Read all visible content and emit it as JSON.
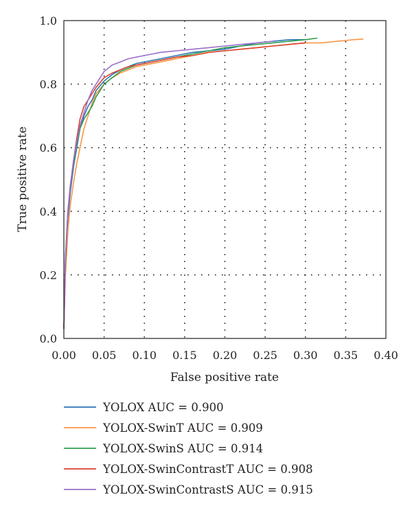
{
  "chart_data": {
    "type": "line",
    "title": "",
    "xlabel": "False positive rate",
    "ylabel": "True positive rate",
    "xlim": [
      0,
      0.4
    ],
    "ylim": [
      0,
      1.0
    ],
    "x_ticks": [
      "0.00",
      "0.05",
      "0.10",
      "0.15",
      "0.20",
      "0.25",
      "0.30",
      "0.35",
      "0.40"
    ],
    "y_ticks": [
      "0.0",
      "0.2",
      "0.4",
      "0.6",
      "0.8",
      "1.0"
    ],
    "grid": true,
    "legend_position": "below",
    "series": [
      {
        "name": "YOLOX AUC = 0.900",
        "color": "#2e75b6",
        "points": [
          [
            0,
            0.03
          ],
          [
            0.002,
            0.22
          ],
          [
            0.005,
            0.38
          ],
          [
            0.008,
            0.46
          ],
          [
            0.012,
            0.54
          ],
          [
            0.016,
            0.6
          ],
          [
            0.02,
            0.66
          ],
          [
            0.025,
            0.7
          ],
          [
            0.03,
            0.73
          ],
          [
            0.035,
            0.75
          ],
          [
            0.04,
            0.78
          ],
          [
            0.05,
            0.81
          ],
          [
            0.06,
            0.83
          ],
          [
            0.07,
            0.845
          ],
          [
            0.08,
            0.855
          ],
          [
            0.09,
            0.865
          ],
          [
            0.1,
            0.87
          ],
          [
            0.12,
            0.88
          ],
          [
            0.14,
            0.89
          ],
          [
            0.16,
            0.9
          ],
          [
            0.18,
            0.905
          ],
          [
            0.2,
            0.91
          ],
          [
            0.22,
            0.92
          ],
          [
            0.24,
            0.93
          ],
          [
            0.26,
            0.935
          ],
          [
            0.28,
            0.94
          ],
          [
            0.3,
            0.94
          ]
        ]
      },
      {
        "name": "YOLOX-SwinT AUC = 0.909",
        "color": "#f79646",
        "points": [
          [
            0,
            0.03
          ],
          [
            0.002,
            0.2
          ],
          [
            0.005,
            0.34
          ],
          [
            0.008,
            0.42
          ],
          [
            0.012,
            0.49
          ],
          [
            0.016,
            0.55
          ],
          [
            0.02,
            0.6
          ],
          [
            0.025,
            0.66
          ],
          [
            0.03,
            0.7
          ],
          [
            0.035,
            0.74
          ],
          [
            0.04,
            0.77
          ],
          [
            0.05,
            0.8
          ],
          [
            0.06,
            0.82
          ],
          [
            0.07,
            0.835
          ],
          [
            0.08,
            0.845
          ],
          [
            0.09,
            0.855
          ],
          [
            0.1,
            0.86
          ],
          [
            0.12,
            0.87
          ],
          [
            0.14,
            0.88
          ],
          [
            0.16,
            0.89
          ],
          [
            0.18,
            0.9
          ],
          [
            0.2,
            0.905
          ],
          [
            0.22,
            0.91
          ],
          [
            0.24,
            0.915
          ],
          [
            0.26,
            0.92
          ],
          [
            0.28,
            0.925
          ],
          [
            0.3,
            0.93
          ],
          [
            0.32,
            0.93
          ],
          [
            0.34,
            0.935
          ],
          [
            0.36,
            0.94
          ],
          [
            0.372,
            0.942
          ]
        ]
      },
      {
        "name": "YOLOX-SwinS AUC = 0.914",
        "color": "#2e9e4f",
        "points": [
          [
            0,
            0.03
          ],
          [
            0.002,
            0.26
          ],
          [
            0.005,
            0.4
          ],
          [
            0.008,
            0.48
          ],
          [
            0.012,
            0.55
          ],
          [
            0.016,
            0.61
          ],
          [
            0.02,
            0.66
          ],
          [
            0.025,
            0.69
          ],
          [
            0.03,
            0.71
          ],
          [
            0.035,
            0.73
          ],
          [
            0.04,
            0.76
          ],
          [
            0.05,
            0.8
          ],
          [
            0.06,
            0.82
          ],
          [
            0.07,
            0.84
          ],
          [
            0.08,
            0.85
          ],
          [
            0.09,
            0.86
          ],
          [
            0.1,
            0.865
          ],
          [
            0.12,
            0.875
          ],
          [
            0.14,
            0.885
          ],
          [
            0.16,
            0.895
          ],
          [
            0.18,
            0.905
          ],
          [
            0.2,
            0.915
          ],
          [
            0.22,
            0.92
          ],
          [
            0.24,
            0.925
          ],
          [
            0.26,
            0.93
          ],
          [
            0.28,
            0.935
          ],
          [
            0.3,
            0.94
          ],
          [
            0.315,
            0.945
          ]
        ]
      },
      {
        "name": "YOLOX-SwinContrastT AUC = 0.908",
        "color": "#d9432b",
        "points": [
          [
            0,
            0.03
          ],
          [
            0.002,
            0.24
          ],
          [
            0.005,
            0.4
          ],
          [
            0.008,
            0.48
          ],
          [
            0.012,
            0.56
          ],
          [
            0.016,
            0.63
          ],
          [
            0.02,
            0.69
          ],
          [
            0.025,
            0.73
          ],
          [
            0.03,
            0.75
          ],
          [
            0.035,
            0.77
          ],
          [
            0.04,
            0.79
          ],
          [
            0.05,
            0.82
          ],
          [
            0.06,
            0.835
          ],
          [
            0.07,
            0.845
          ],
          [
            0.08,
            0.855
          ],
          [
            0.09,
            0.86
          ],
          [
            0.1,
            0.865
          ],
          [
            0.12,
            0.875
          ],
          [
            0.14,
            0.885
          ],
          [
            0.16,
            0.89
          ],
          [
            0.18,
            0.9
          ],
          [
            0.2,
            0.905
          ],
          [
            0.22,
            0.91
          ],
          [
            0.24,
            0.915
          ],
          [
            0.26,
            0.92
          ],
          [
            0.28,
            0.925
          ],
          [
            0.3,
            0.93
          ]
        ]
      },
      {
        "name": "YOLOX-SwinContrastS AUC = 0.915",
        "color": "#9b6fc9",
        "points": [
          [
            0,
            0.03
          ],
          [
            0.002,
            0.25
          ],
          [
            0.005,
            0.4
          ],
          [
            0.008,
            0.48
          ],
          [
            0.012,
            0.56
          ],
          [
            0.016,
            0.62
          ],
          [
            0.02,
            0.67
          ],
          [
            0.025,
            0.71
          ],
          [
            0.03,
            0.75
          ],
          [
            0.035,
            0.78
          ],
          [
            0.04,
            0.8
          ],
          [
            0.05,
            0.84
          ],
          [
            0.06,
            0.86
          ],
          [
            0.07,
            0.87
          ],
          [
            0.08,
            0.88
          ],
          [
            0.09,
            0.885
          ],
          [
            0.1,
            0.89
          ],
          [
            0.12,
            0.9
          ],
          [
            0.14,
            0.905
          ],
          [
            0.16,
            0.91
          ],
          [
            0.18,
            0.915
          ],
          [
            0.2,
            0.92
          ],
          [
            0.22,
            0.925
          ],
          [
            0.24,
            0.93
          ],
          [
            0.26,
            0.935
          ]
        ]
      }
    ]
  }
}
